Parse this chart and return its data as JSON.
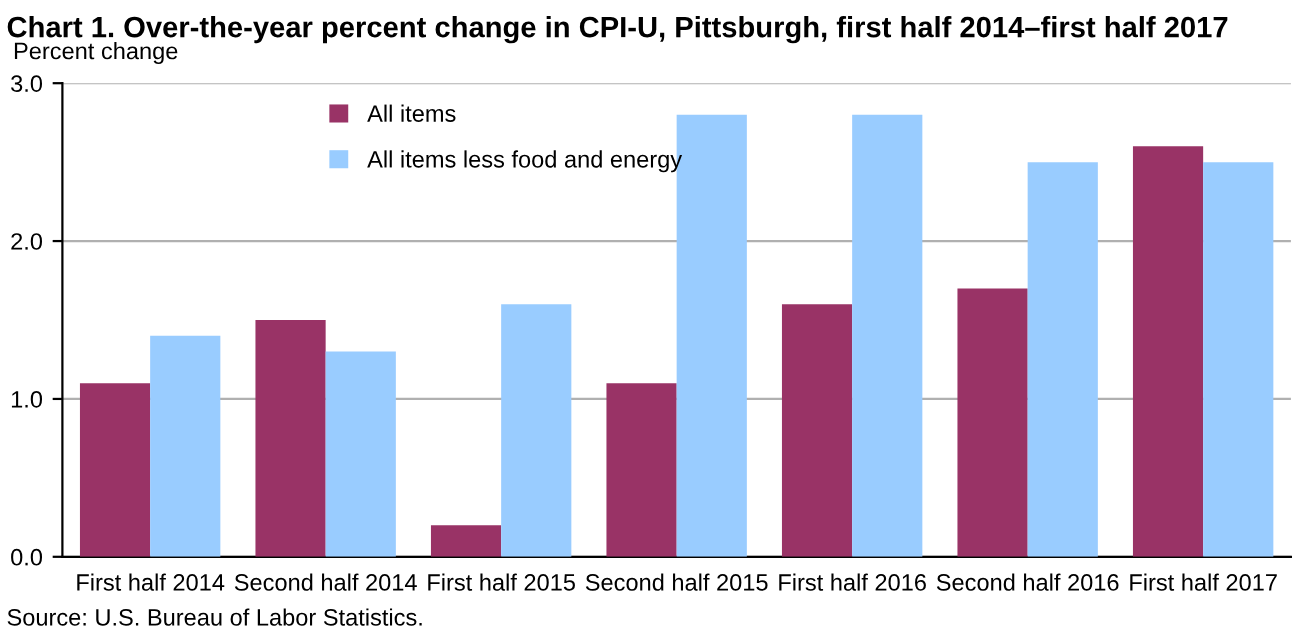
{
  "chart_data": {
    "type": "bar",
    "title": "Chart 1. Over-the-year percent change in CPI-U, Pittsburgh, first half 2014–first half 2017",
    "ylabel": "Percent change",
    "categories": [
      "First half 2014",
      "Second half 2014",
      "First half 2015",
      "Second half 2015",
      "First half 2016",
      "Second half 2016",
      "First half 2017"
    ],
    "series": [
      {
        "name": "All items",
        "color": "#993366",
        "values": [
          1.1,
          1.5,
          0.2,
          1.1,
          1.6,
          1.7,
          2.6
        ]
      },
      {
        "name": "All items less food and energy",
        "color": "#99ccff",
        "values": [
          1.4,
          1.3,
          1.6,
          2.8,
          2.8,
          2.5,
          2.5
        ]
      }
    ],
    "ylim": [
      0,
      3
    ],
    "yticks": [
      {
        "value": 0,
        "label": "0.0"
      },
      {
        "value": 1,
        "label": "1.0"
      },
      {
        "value": 2,
        "label": "2.0"
      },
      {
        "value": 3,
        "label": "3.0"
      }
    ],
    "grid": "y",
    "legend": "top left",
    "annotations": [
      "Source: U.S. Bureau of Labor Statistics."
    ]
  }
}
